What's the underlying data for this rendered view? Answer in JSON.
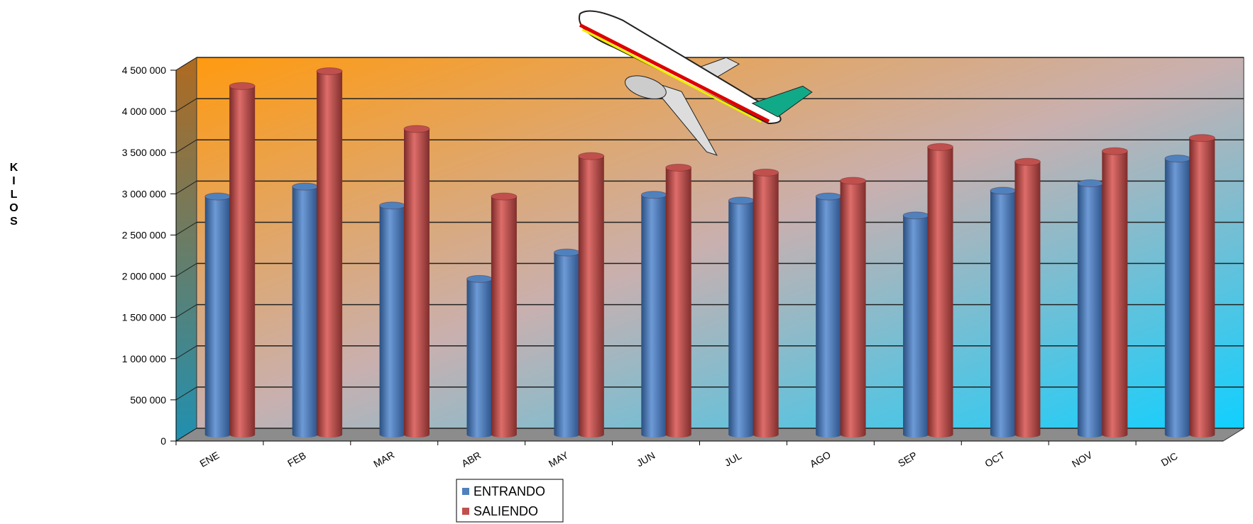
{
  "chart_data": {
    "type": "bar3d",
    "y_label": "KILOS",
    "categories": [
      "ENE",
      "FEB",
      "MAR",
      "ABR",
      "MAY",
      "JUN",
      "JUL",
      "AGO",
      "SEP",
      "OCT",
      "NOV",
      "DIC"
    ],
    "series": [
      {
        "name": "ENTRANDO",
        "color": "#4f81bd",
        "values": [
          2890000,
          3010000,
          2780000,
          1890000,
          2210000,
          2910000,
          2840000,
          2890000,
          2660000,
          2960000,
          3050000,
          3350000
        ]
      },
      {
        "name": "SALIENDO",
        "color": "#c0504d",
        "values": [
          4230000,
          4410000,
          3710000,
          2890000,
          3380000,
          3240000,
          3180000,
          3080000,
          3490000,
          3310000,
          3440000,
          3600000
        ]
      }
    ],
    "ylim": [
      0,
      4500000
    ],
    "yticks": [
      0,
      {
        "value": 500000,
        "label": "500 000"
      },
      {
        "value": 1000000,
        "label": "1 000 000"
      },
      {
        "value": 1500000,
        "label": "1 500 000"
      },
      {
        "value": 2000000,
        "label": "2 000 000"
      },
      {
        "value": 2500000,
        "label": "2 500 000"
      },
      {
        "value": 3000000,
        "label": "3 000 000"
      },
      {
        "value": 3500000,
        "label": "3 500 000"
      },
      {
        "value": 4000000,
        "label": "4 000 000"
      },
      {
        "value": 4500000,
        "label": "4 500 000"
      }
    ],
    "grid": true
  }
}
